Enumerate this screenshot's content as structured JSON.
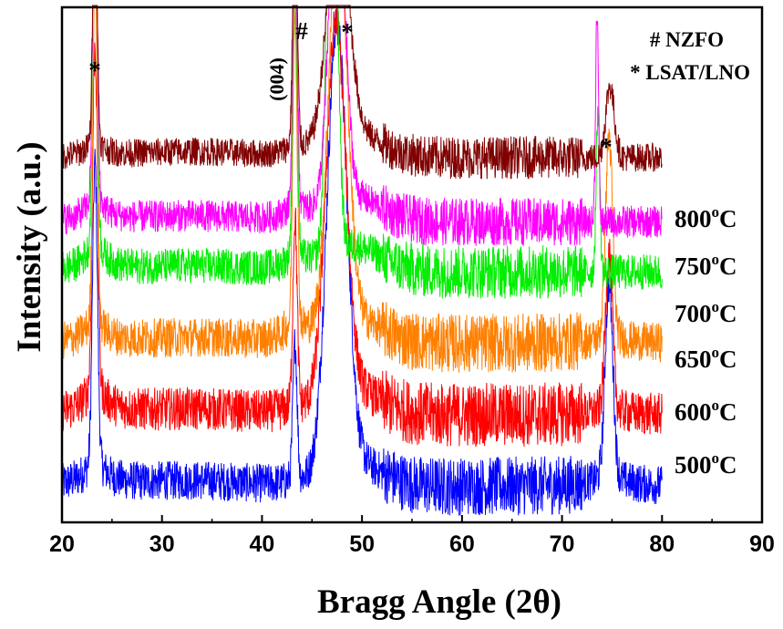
{
  "chart_data": {
    "type": "line",
    "xlabel": "Bragg Angle (2θ)",
    "ylabel": "Intensity (a.u.)",
    "xlim": [
      20,
      90
    ],
    "x_ticks": [
      "20",
      "30",
      "40",
      "50",
      "60",
      "70",
      "80",
      "90"
    ],
    "y_ticks_labeled": false,
    "grid": false,
    "legend": {
      "position": "top-right",
      "entries": [
        "# NZFO",
        "* LSAT/LNO"
      ]
    },
    "annotations": [
      {
        "text": "*",
        "x": 23.3
      },
      {
        "text": "#",
        "x": 43.3
      },
      {
        "text": "(004)",
        "x": 42.6
      },
      {
        "text": "*",
        "x": 48.3
      },
      {
        "text": "*",
        "x": 75.3
      }
    ],
    "x_range_measured": [
      20,
      80
    ],
    "series": [
      {
        "name": "500°C",
        "label_main": "500",
        "label_sup": "o",
        "label_unit": "C",
        "color": "#0000ff",
        "baseline": 0.5,
        "noise": 0.55,
        "peaks": [
          {
            "x": 23.3,
            "h": 4.2,
            "w": 0.35,
            "tail": 0.6
          },
          {
            "x": 43.3,
            "h": 1.9,
            "w": 0.3,
            "tail": 0.2
          },
          {
            "x": 47.5,
            "h": 6.2,
            "w": 1.4,
            "tail": 0.0
          },
          {
            "x": 74.7,
            "h": 2.7,
            "w": 0.55,
            "tail": 0.4
          }
        ]
      },
      {
        "name": "600°C",
        "label_main": "600",
        "label_sup": "o",
        "label_unit": "C",
        "color": "#ff0000",
        "baseline": 1.5,
        "noise": 0.6,
        "peaks": [
          {
            "x": 23.3,
            "h": 4.8,
            "w": 0.35,
            "tail": 0.6
          },
          {
            "x": 43.3,
            "h": 2.6,
            "w": 0.3,
            "tail": 0.3
          },
          {
            "x": 47.4,
            "h": 5.2,
            "w": 1.4,
            "tail": 0.0
          },
          {
            "x": 74.7,
            "h": 2.2,
            "w": 0.5,
            "tail": 0.3
          }
        ]
      },
      {
        "name": "650°C",
        "label_main": "650",
        "label_sup": "o",
        "label_unit": "C",
        "color": "#ff8000",
        "baseline": 2.5,
        "noise": 0.55,
        "peaks": [
          {
            "x": 23.3,
            "h": 5.0,
            "w": 0.3,
            "tail": 0.5
          },
          {
            "x": 43.3,
            "h": 4.4,
            "w": 0.3,
            "tail": 0.5
          },
          {
            "x": 47.6,
            "h": 5.6,
            "w": 1.3,
            "tail": 0.0
          },
          {
            "x": 74.7,
            "h": 2.8,
            "w": 0.5,
            "tail": 0.3
          }
        ]
      },
      {
        "name": "700°C",
        "label_main": "700",
        "label_sup": "o",
        "label_unit": "C",
        "color": "#00ee00",
        "baseline": 3.5,
        "noise": 0.5,
        "peaks": [
          {
            "x": 23.3,
            "h": 6.1,
            "w": 0.3,
            "tail": 0.5
          },
          {
            "x": 43.3,
            "h": 4.1,
            "w": 0.3,
            "tail": 0.4
          },
          {
            "x": 47.0,
            "h": 7.0,
            "w": 0.7,
            "tail": 0.0
          },
          {
            "x": 73.6,
            "h": 2.3,
            "w": 0.25,
            "tail": 0.0
          }
        ]
      },
      {
        "name": "750°C",
        "label_main": "750",
        "label_sup": "o",
        "label_unit": "C",
        "color": "#ff00ff",
        "baseline": 4.2,
        "noise": 0.45,
        "peaks": [
          {
            "x": 23.3,
            "h": 4.9,
            "w": 0.3,
            "tail": 0.5
          },
          {
            "x": 43.3,
            "h": 4.0,
            "w": 0.3,
            "tail": 0.4
          },
          {
            "x": 47.5,
            "h": 4.6,
            "w": 1.1,
            "tail": 0.0
          },
          {
            "x": 73.5,
            "h": 3.0,
            "w": 0.2,
            "tail": 0.0
          }
        ]
      },
      {
        "name": "800°C",
        "label_main": "800",
        "label_sup": "o",
        "label_unit": "C",
        "color": "#800000",
        "baseline": 5.1,
        "noise": 0.4,
        "peaks": [
          {
            "x": 23.3,
            "h": 3.5,
            "w": 0.3,
            "tail": 0.4
          },
          {
            "x": 43.3,
            "h": 3.5,
            "w": 0.3,
            "tail": 0.3
          },
          {
            "x": 47.6,
            "h": 3.2,
            "w": 1.5,
            "tail": 0.0
          },
          {
            "x": 74.8,
            "h": 1.0,
            "w": 0.6,
            "tail": 0.0
          }
        ]
      }
    ]
  }
}
